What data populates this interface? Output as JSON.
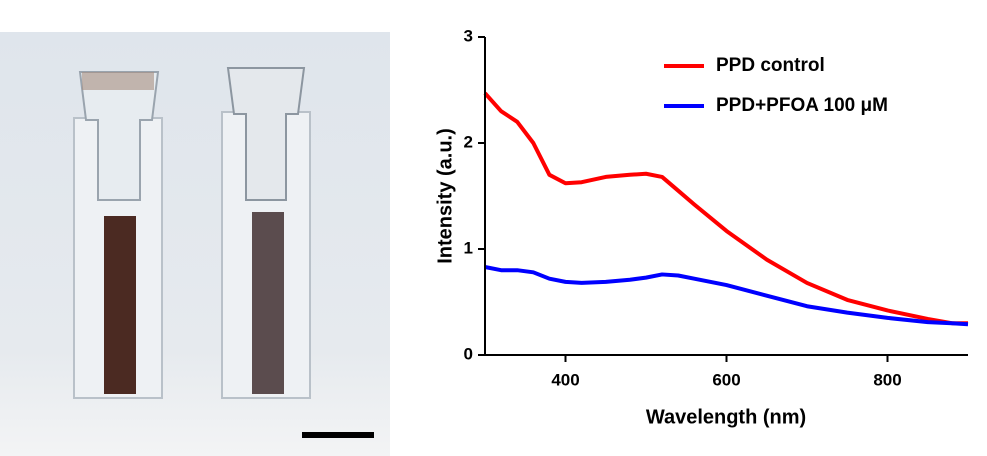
{
  "chart_data": {
    "type": "line",
    "x_label": "Wavelength (nm)",
    "y_label": "Intensity (a.u.)",
    "x": [
      300,
      320,
      340,
      360,
      380,
      400,
      420,
      450,
      480,
      500,
      520,
      540,
      560,
      600,
      650,
      700,
      750,
      800,
      850,
      880,
      900
    ],
    "series": [
      {
        "name": "PPD control",
        "color": "#ff0000",
        "values": [
          2.47,
          2.3,
          2.2,
          2.0,
          1.7,
          1.62,
          1.63,
          1.68,
          1.7,
          1.71,
          1.68,
          1.55,
          1.42,
          1.17,
          0.9,
          0.68,
          0.52,
          0.42,
          0.34,
          0.3,
          0.3
        ]
      },
      {
        "name": "PPD+PFOA 100 μM",
        "color": "#0000ff",
        "values": [
          0.83,
          0.8,
          0.8,
          0.78,
          0.72,
          0.69,
          0.68,
          0.69,
          0.71,
          0.73,
          0.76,
          0.75,
          0.72,
          0.66,
          0.56,
          0.46,
          0.4,
          0.35,
          0.31,
          0.3,
          0.29
        ]
      }
    ],
    "xlim": [
      300,
      900
    ],
    "xticks": [
      400,
      600,
      800
    ],
    "ylim": [
      0,
      3
    ],
    "yticks": [
      0,
      1,
      2,
      3
    ],
    "legend": "upper right"
  }
}
